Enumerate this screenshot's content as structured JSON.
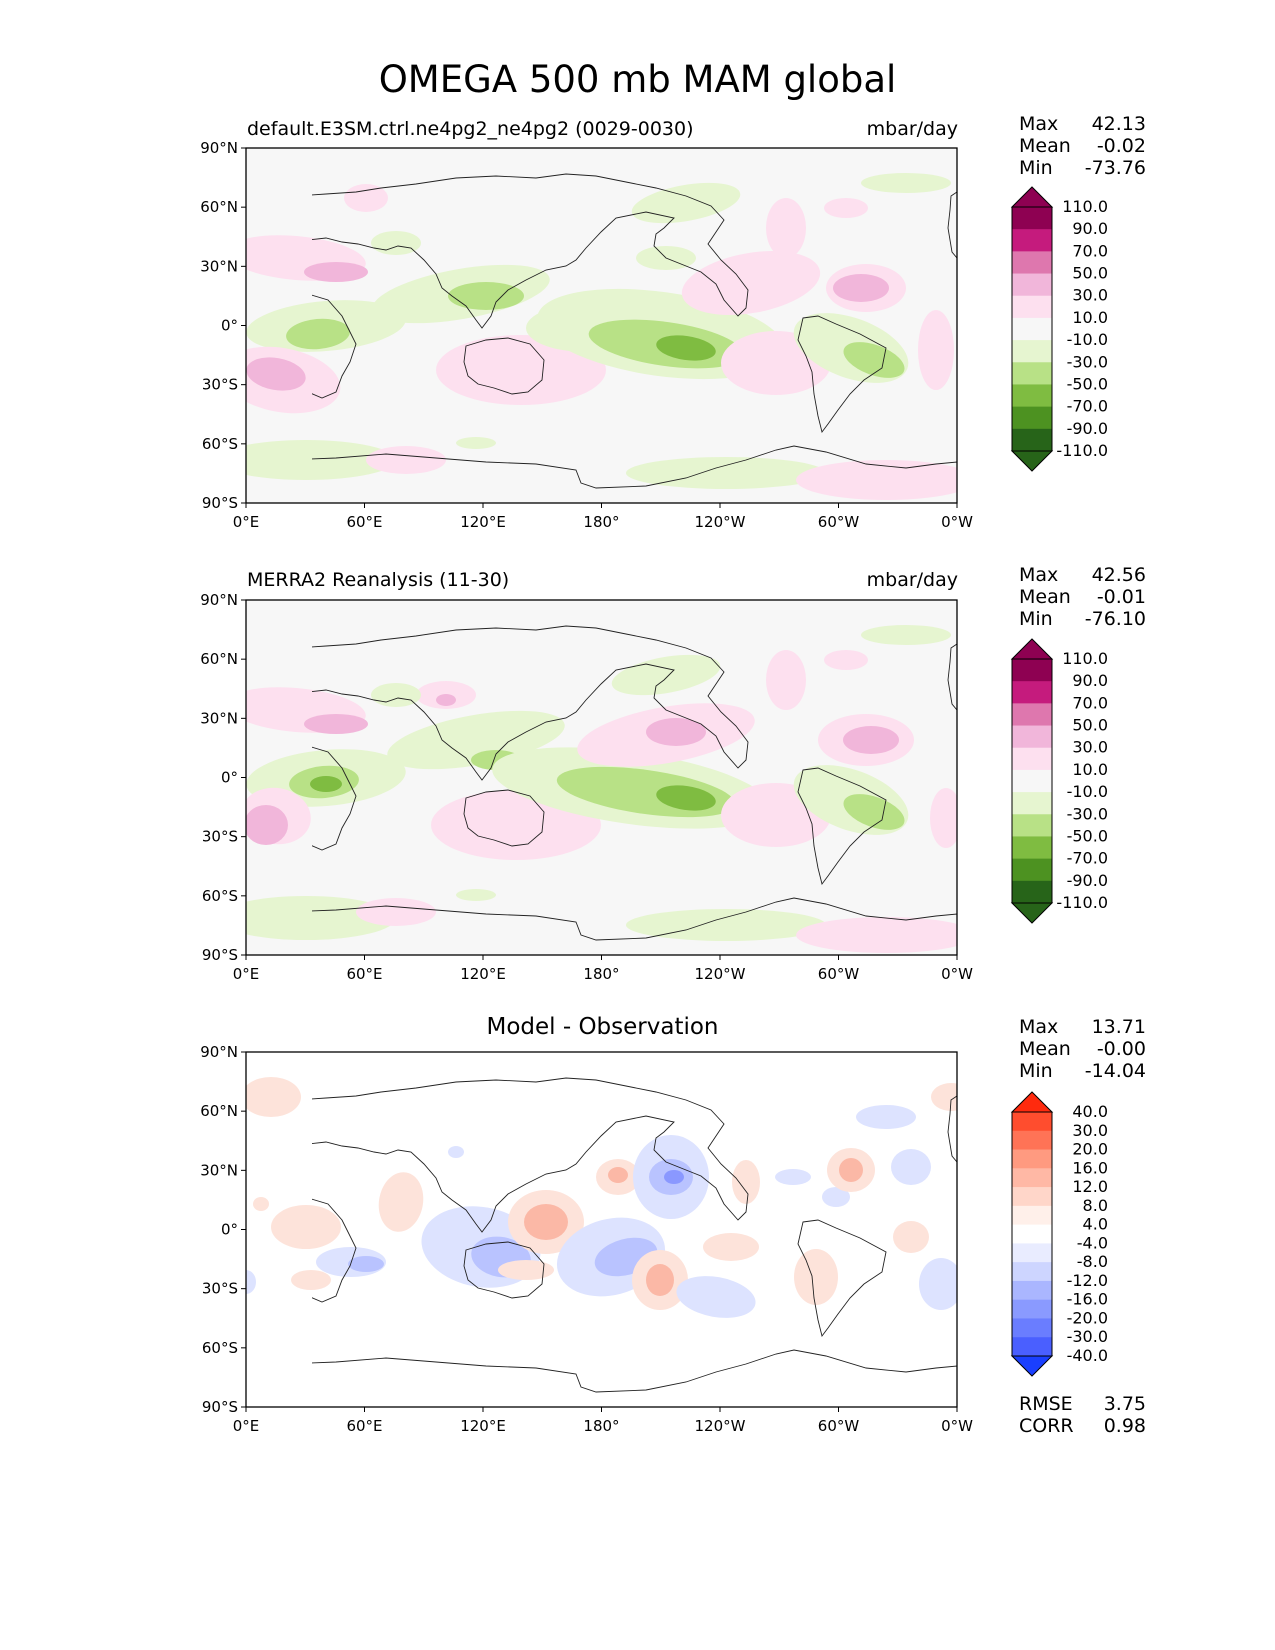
{
  "title": "OMEGA 500 mb MAM global",
  "axes": {
    "lat_labels": [
      "90°N",
      "60°N",
      "30°N",
      "0°",
      "30°S",
      "60°S",
      "90°S"
    ],
    "lon_labels": [
      "0°E",
      "60°E",
      "120°E",
      "180°",
      "120°W",
      "60°W",
      "0°W"
    ]
  },
  "panels": [
    {
      "title": "default.E3SM.ctrl.ne4pg2_ne4pg2 (0029-0030)",
      "units": "mbar/day",
      "stats": [
        {
          "label": "Max",
          "value": "42.13"
        },
        {
          "label": "Mean",
          "value": "-0.02"
        },
        {
          "label": "Min",
          "value": "-73.76"
        }
      ],
      "colorbar": "omega"
    },
    {
      "title": "MERRA2 Reanalysis (11-30)",
      "units": "mbar/day",
      "stats": [
        {
          "label": "Max",
          "value": "42.56"
        },
        {
          "label": "Mean",
          "value": "-0.01"
        },
        {
          "label": "Min",
          "value": "-76.10"
        }
      ],
      "colorbar": "omega"
    },
    {
      "title": "Model - Observation",
      "units": "",
      "stats": [
        {
          "label": "Max",
          "value": "13.71"
        },
        {
          "label": "Mean",
          "value": "-0.00"
        },
        {
          "label": "Min",
          "value": "-14.04"
        }
      ],
      "extra_stats": [
        {
          "label": "RMSE",
          "value": "3.75"
        },
        {
          "label": "CORR",
          "value": "0.98"
        }
      ],
      "colorbar": "diff"
    }
  ],
  "colorbars": {
    "omega": {
      "labels": [
        "110.0",
        "90.0",
        "70.0",
        "50.0",
        "30.0",
        "10.0",
        "-10.0",
        "-30.0",
        "-50.0",
        "-70.0",
        "-90.0",
        "-110.0"
      ],
      "colors": [
        "#8e0152",
        "#c51b7d",
        "#de77ae",
        "#f1b6da",
        "#fde0ef",
        "#f7f7f7",
        "#e6f5d0",
        "#b8e186",
        "#7fbc41",
        "#4d9221",
        "#276419"
      ],
      "over_color": "#8e0152",
      "under_color": "#276419"
    },
    "diff": {
      "labels": [
        "40.0",
        "30.0",
        "20.0",
        "16.0",
        "12.0",
        "8.0",
        "4.0",
        "-4.0",
        "-8.0",
        "-12.0",
        "-16.0",
        "-20.0",
        "-30.0",
        "-40.0"
      ],
      "colors": [
        "#ff4d2e",
        "#ff7356",
        "#ff9a80",
        "#ffb8a5",
        "#ffd6c9",
        "#fff0ea",
        "#ffffff",
        "#e9ecff",
        "#cdd5ff",
        "#aab6ff",
        "#8a9aff",
        "#6a7dff",
        "#4a5fff"
      ],
      "over_color": "#ff2a0e",
      "under_color": "#1a3fff"
    }
  },
  "field_colors": {
    "pink_light": "#fde0ef",
    "pink_mid": "#f1b6da",
    "pink_dark": "#de77ae",
    "green_light": "#e6f5d0",
    "green_mid": "#b8e186",
    "green_dark": "#7fbc41",
    "red_light": "#fde3da",
    "red_mid": "#fbb8a6",
    "blue_light": "#dde3ff",
    "blue_mid": "#b9c3ff",
    "blue_dark": "#8a98ff"
  }
}
